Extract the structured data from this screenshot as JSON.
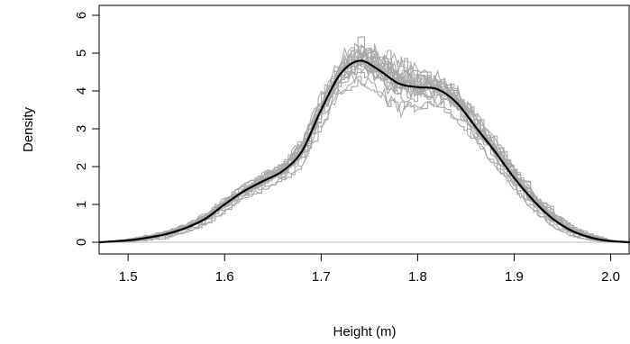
{
  "chart_data": {
    "type": "line",
    "title": "",
    "xlabel": "Height (m)",
    "ylabel": "Density",
    "xlim": [
      1.47,
      2.02
    ],
    "ylim": [
      0,
      6
    ],
    "xticks": [
      1.5,
      1.6,
      1.7,
      1.8,
      1.9,
      2.0
    ],
    "xtick_labels": [
      "1.5",
      "1.6",
      "1.7",
      "1.8",
      "1.9",
      "2.0"
    ],
    "yticks": [
      0,
      1,
      2,
      3,
      4,
      5,
      6
    ],
    "ytick_labels": [
      "0",
      "1",
      "2",
      "3",
      "4",
      "5",
      "6"
    ],
    "grid": false,
    "legend": "none",
    "colors": {
      "main": "#000000",
      "samples": "#a8a8a8",
      "zero_line": "#bdbdbd"
    },
    "main_series": {
      "x": [
        1.47,
        1.5,
        1.52,
        1.54,
        1.56,
        1.58,
        1.6,
        1.62,
        1.64,
        1.66,
        1.68,
        1.7,
        1.72,
        1.74,
        1.76,
        1.78,
        1.8,
        1.82,
        1.84,
        1.86,
        1.88,
        1.9,
        1.92,
        1.94,
        1.96,
        1.98,
        2.0,
        2.02
      ],
      "y": [
        0.0,
        0.05,
        0.12,
        0.22,
        0.38,
        0.62,
        1.0,
        1.35,
        1.62,
        1.88,
        2.4,
        3.5,
        4.45,
        4.8,
        4.55,
        4.2,
        4.1,
        4.05,
        3.7,
        3.05,
        2.4,
        1.7,
        1.1,
        0.62,
        0.3,
        0.12,
        0.03,
        0.0
      ]
    },
    "sample_band": {
      "count": 20,
      "note_x": [
        1.47,
        1.5,
        1.52,
        1.54,
        1.56,
        1.58,
        1.6,
        1.62,
        1.64,
        1.66,
        1.68,
        1.7,
        1.72,
        1.74,
        1.76,
        1.78,
        1.8,
        1.82,
        1.84,
        1.86,
        1.88,
        1.9,
        1.92,
        1.94,
        1.96,
        1.98,
        2.0,
        2.02
      ],
      "max_y": [
        0.0,
        0.08,
        0.2,
        0.32,
        0.5,
        0.8,
        1.2,
        1.55,
        1.85,
        2.1,
        2.8,
        4.0,
        5.0,
        5.55,
        5.2,
        4.95,
        4.7,
        4.55,
        4.2,
        3.5,
        2.8,
        2.05,
        1.4,
        0.9,
        0.5,
        0.22,
        0.06,
        0.0
      ],
      "min_y": [
        0.0,
        0.0,
        0.04,
        0.1,
        0.25,
        0.45,
        0.8,
        1.1,
        1.35,
        1.6,
        2.0,
        3.0,
        3.9,
        4.2,
        3.9,
        3.2,
        3.5,
        3.6,
        3.2,
        2.6,
        2.0,
        1.35,
        0.8,
        0.4,
        0.15,
        0.04,
        0.0,
        0.0
      ]
    }
  }
}
